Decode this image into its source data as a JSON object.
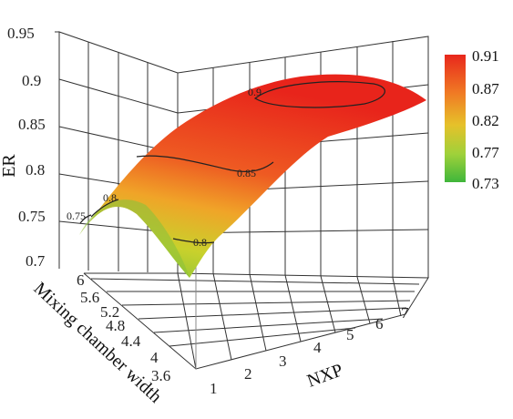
{
  "chart_data": {
    "type": "surface",
    "xlabel": "NXP",
    "ylabel": "Mixing chamber width",
    "zlabel": "ER",
    "x_ticks": [
      "1",
      "2",
      "3",
      "4",
      "5",
      "6",
      "7"
    ],
    "y_ticks": [
      "3.6",
      "4",
      "4.4",
      "4.8",
      "5.2",
      "5.6",
      "6"
    ],
    "z_ticks": [
      "0.7",
      "0.75",
      "0.8",
      "0.85",
      "0.9",
      "0.95"
    ],
    "xlim": [
      1,
      7.5
    ],
    "ylim": [
      3.4,
      6.1
    ],
    "zlim": [
      0.7,
      0.95
    ],
    "grid": true,
    "surface_corners": [
      {
        "x": 1,
        "y": 3.6,
        "z": 0.8
      },
      {
        "x": 1,
        "y": 6.0,
        "z": 0.72
      },
      {
        "x": 7.5,
        "y": 6.0,
        "z": 0.78
      },
      {
        "x": 7.5,
        "y": 3.6,
        "z": 0.86
      }
    ],
    "surface_peak": {
      "x": 5.2,
      "y": 4.3,
      "z": 0.91
    },
    "contours": [
      {
        "level": 0.75,
        "label": "0.75"
      },
      {
        "level": 0.8,
        "label": "0.8"
      },
      {
        "level": 0.8,
        "label": "0.8"
      },
      {
        "level": 0.85,
        "label": "0.85"
      },
      {
        "level": 0.9,
        "label": "0.9"
      }
    ],
    "colorbar": {
      "labels": [
        "0.91",
        "0.87",
        "0.82",
        "0.77",
        "0.73"
      ],
      "colors": [
        "#e8271c",
        "#f07a24",
        "#e6c12a",
        "#9fd13a",
        "#3fb63b"
      ]
    }
  }
}
